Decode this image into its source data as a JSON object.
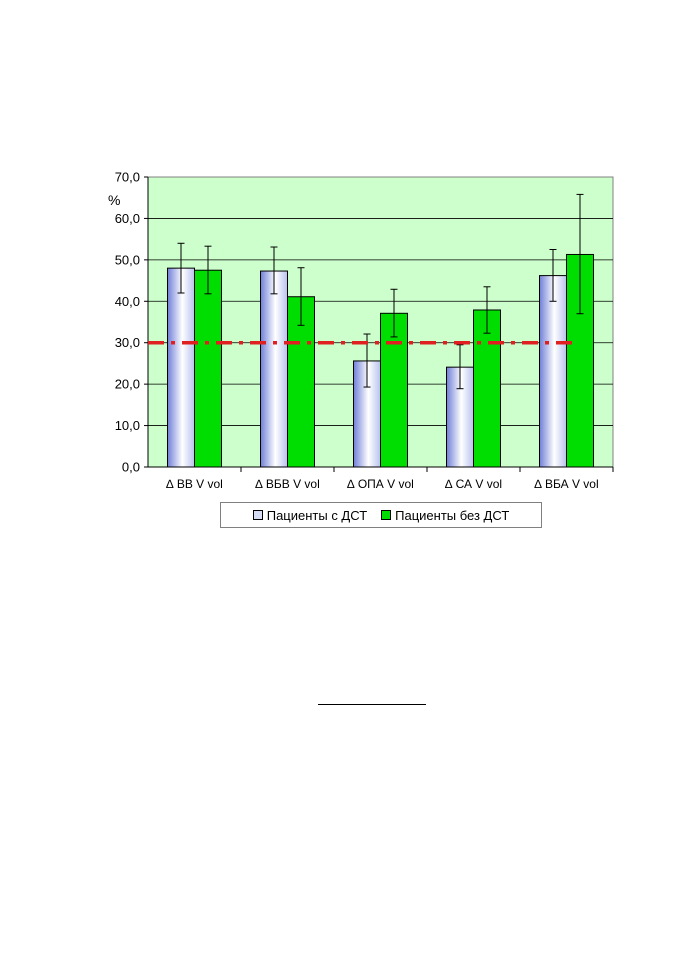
{
  "chart_data": {
    "type": "bar",
    "ylabel": "%",
    "ylim": [
      0,
      70
    ],
    "yticks": [
      "0,0",
      "10,0",
      "20,0",
      "30,0",
      "40,0",
      "50,0",
      "60,0",
      "70,0"
    ],
    "grid": true,
    "plot_background": "#ccffcc",
    "categories": [
      "∆ ВВ V vol",
      "∆ ВБВ V vol",
      "∆ ОПА V vol",
      "∆ СА V vol",
      "∆ ВБА V vol"
    ],
    "series": [
      {
        "name": "Пациенты с ДСТ",
        "color": "#d7dcf5",
        "values": [
          48.0,
          47.3,
          25.6,
          24.1,
          46.2
        ],
        "error_low": [
          42.0,
          41.8,
          19.3,
          18.9,
          40.0
        ],
        "error_high": [
          54.0,
          53.1,
          32.1,
          29.5,
          52.5
        ]
      },
      {
        "name": "Пациенты без ДСТ",
        "color": "#00dd00",
        "values": [
          47.5,
          41.1,
          37.1,
          37.9,
          51.3
        ],
        "error_low": [
          41.8,
          34.2,
          31.4,
          32.3,
          37.0
        ],
        "error_high": [
          53.3,
          48.1,
          42.9,
          43.5,
          65.8
        ]
      }
    ],
    "reference_line": {
      "value": 30,
      "color": "#e02020",
      "style": "dash-dot"
    },
    "legend_position": "bottom"
  }
}
